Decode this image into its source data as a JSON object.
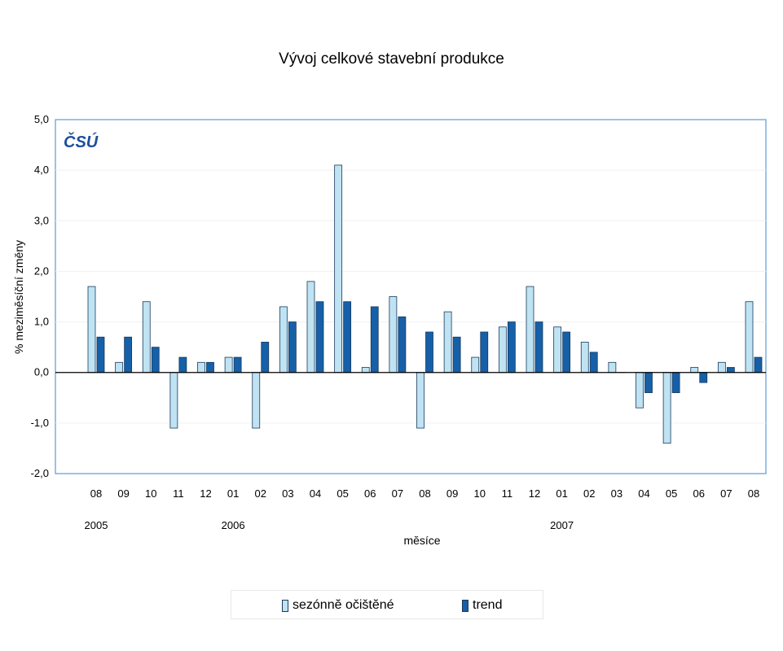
{
  "chart_data": {
    "type": "bar",
    "title": "Vývoj celkové stavební produkce",
    "ylabel": "% mezimĕsíční změny",
    "xlabel": "mĕsíce",
    "logo": "ČSÚ",
    "ylim": [
      -2.0,
      5.0
    ],
    "yticks": [
      "5,0",
      "4,0",
      "3,0",
      "2,0",
      "1,0",
      "0,0",
      "-1,0",
      "-2,0"
    ],
    "ytick_values": [
      5,
      4,
      3,
      2,
      1,
      0,
      -1,
      -2
    ],
    "categories": [
      "08",
      "09",
      "10",
      "11",
      "12",
      "01",
      "02",
      "03",
      "04",
      "05",
      "06",
      "07",
      "08",
      "09",
      "10",
      "11",
      "12",
      "01",
      "02",
      "03",
      "04",
      "05",
      "06",
      "07",
      "08"
    ],
    "years": [
      {
        "label": "2005",
        "index": 0
      },
      {
        "label": "2006",
        "index": 5
      },
      {
        "label": "2007",
        "index": 17
      }
    ],
    "series": [
      {
        "name": "sezónnĕ očištĕné",
        "color": "#bfe3f2",
        "values": [
          1.7,
          0.2,
          1.4,
          -1.1,
          0.2,
          0.3,
          -1.1,
          1.3,
          1.8,
          4.1,
          0.1,
          1.5,
          -1.1,
          1.2,
          0.3,
          0.9,
          1.7,
          0.9,
          0.6,
          0.2,
          -0.7,
          -1.4,
          0.1,
          0.2,
          1.4
        ]
      },
      {
        "name": "trend",
        "color": "#1560a8",
        "values": [
          0.7,
          0.7,
          0.5,
          0.3,
          0.2,
          0.3,
          0.6,
          1.0,
          1.4,
          1.4,
          1.3,
          1.1,
          0.8,
          0.7,
          0.8,
          1.0,
          1.0,
          0.8,
          0.4,
          0.0,
          -0.4,
          -0.4,
          -0.2,
          0.1,
          0.3
        ]
      }
    ],
    "legend_position": "bottom",
    "grid": true
  }
}
